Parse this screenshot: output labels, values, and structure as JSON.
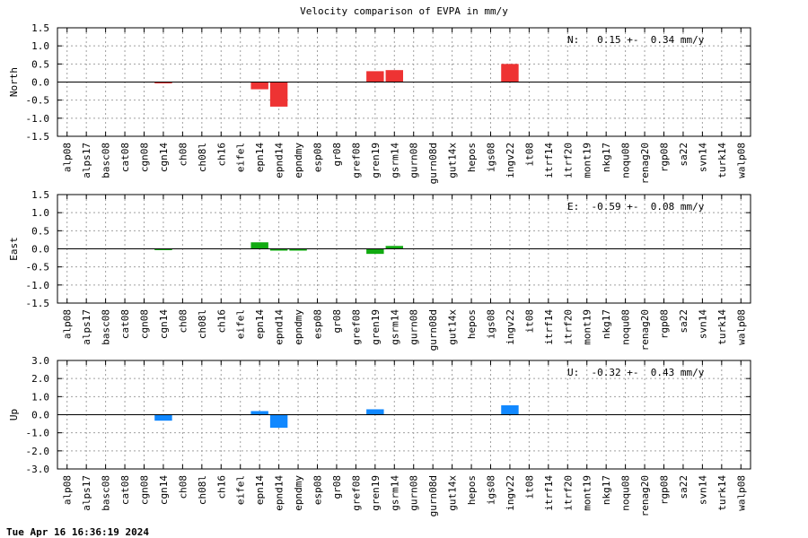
{
  "title": "Velocity comparison of EVPA in mm/y",
  "timestamp": "Tue Apr 16 16:36:19 2024",
  "chart_data": [
    {
      "type": "bar",
      "ylabel": "North",
      "annotation": "N:   0.15 +-  0.34 mm/y",
      "color": "#ee3333",
      "ylim": [
        -1.5,
        1.5
      ],
      "yticks": [
        1.5,
        1.0,
        0.5,
        0.0,
        -0.5,
        -1.0,
        -1.5
      ],
      "ytick_labels": [
        "1.5",
        "1.0",
        "0.5",
        "0.0",
        "-0.5",
        "-1.0",
        "-1.5"
      ],
      "grid": true,
      "categories": [
        "alp08",
        "alps17",
        "basc08",
        "cat08",
        "cgn08",
        "cgn14",
        "ch08",
        "ch08l",
        "ch16",
        "eifel",
        "epn14",
        "epnd14",
        "epndmy",
        "esp08",
        "gr08",
        "gref08",
        "gren19",
        "gsrm14",
        "gurn08",
        "gurn08d",
        "gut14x",
        "hepos",
        "igs08",
        "ingv22",
        "it08",
        "itrf14",
        "itrf20",
        "mont19",
        "nkg17",
        "noqu08",
        "renag20",
        "rgp08",
        "sa22",
        "svn14",
        "turk14",
        "walp08"
      ],
      "values": [
        0,
        0,
        0,
        0,
        0,
        -0.03,
        0,
        0,
        0,
        0,
        -0.2,
        -0.68,
        0,
        0,
        0,
        0,
        0.3,
        0.33,
        0,
        0,
        0,
        0,
        0,
        0.5,
        0,
        0,
        0,
        0,
        0,
        0,
        0,
        0,
        0,
        0,
        0,
        0
      ]
    },
    {
      "type": "bar",
      "ylabel": "East",
      "annotation": "E:  -0.59 +-  0.08 mm/y",
      "color": "#11aa11",
      "ylim": [
        -1.5,
        1.5
      ],
      "yticks": [
        1.5,
        1.0,
        0.5,
        0.0,
        -0.5,
        -1.0,
        -1.5
      ],
      "ytick_labels": [
        "1.5",
        "1.0",
        "0.5",
        "0.0",
        "-0.5",
        "-1.0",
        "-1.5"
      ],
      "grid": true,
      "categories": [
        "alp08",
        "alps17",
        "basc08",
        "cat08",
        "cgn08",
        "cgn14",
        "ch08",
        "ch08l",
        "ch16",
        "eifel",
        "epn14",
        "epnd14",
        "epndmy",
        "esp08",
        "gr08",
        "gref08",
        "gren19",
        "gsrm14",
        "gurn08",
        "gurn08d",
        "gut14x",
        "hepos",
        "igs08",
        "ingv22",
        "it08",
        "itrf14",
        "itrf20",
        "mont19",
        "nkg17",
        "noqu08",
        "renag20",
        "rgp08",
        "sa22",
        "svn14",
        "turk14",
        "walp08"
      ],
      "values": [
        0,
        0,
        0,
        0,
        0,
        -0.03,
        0,
        0,
        0,
        0,
        0.18,
        -0.05,
        -0.05,
        0,
        0,
        0,
        -0.14,
        0.08,
        0,
        0,
        0,
        0,
        0,
        0,
        0,
        0,
        0,
        0,
        0,
        0,
        0,
        0,
        0,
        0,
        0,
        0
      ]
    },
    {
      "type": "bar",
      "ylabel": "Up",
      "annotation": "U:  -0.32 +-  0.43 mm/y",
      "color": "#1188ff",
      "ylim": [
        -3.0,
        3.0
      ],
      "yticks": [
        3.0,
        2.0,
        1.0,
        0.0,
        -1.0,
        -2.0,
        -3.0
      ],
      "ytick_labels": [
        "3.0",
        "2.0",
        "1.0",
        "0.0",
        "-1.0",
        "-2.0",
        "-3.0"
      ],
      "grid": true,
      "categories": [
        "alp08",
        "alps17",
        "basc08",
        "cat08",
        "cgn08",
        "cgn14",
        "ch08",
        "ch08l",
        "ch16",
        "eifel",
        "epn14",
        "epnd14",
        "epndmy",
        "esp08",
        "gr08",
        "gref08",
        "gren19",
        "gsrm14",
        "gurn08",
        "gurn08d",
        "gut14x",
        "hepos",
        "igs08",
        "ingv22",
        "it08",
        "itrf14",
        "itrf20",
        "mont19",
        "nkg17",
        "noqu08",
        "renag20",
        "rgp08",
        "sa22",
        "svn14",
        "turk14",
        "walp08"
      ],
      "values": [
        0,
        0,
        0,
        0,
        0,
        -0.33,
        0,
        0,
        0,
        0,
        0.2,
        -0.72,
        0,
        0,
        0,
        0,
        0.3,
        0,
        0,
        0,
        0,
        0,
        0,
        0.52,
        0,
        0,
        0,
        0,
        0,
        0,
        0,
        0,
        0,
        0,
        0,
        0
      ]
    }
  ]
}
